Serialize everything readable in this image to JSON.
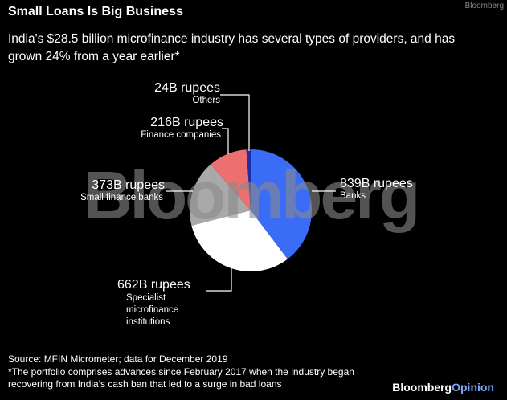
{
  "chart_data": {
    "type": "pie",
    "title": "Small Loans Is Big Business",
    "subtitle": "India's $28.5 billion microfinance industry has several types of providers, and has grown 24% from a year earlier*",
    "categories": [
      "Banks",
      "Specialist microfinance institutions",
      "Small finance banks",
      "Finance companies",
      "Others"
    ],
    "values": [
      839,
      662,
      373,
      216,
      24
    ],
    "value_labels": [
      "839B rupees",
      "662B rupees",
      "373B rupees",
      "216B rupees",
      "24B rupees"
    ],
    "colors": [
      "#3a6cf6",
      "#ffffff",
      "#a9a9a9",
      "#ee6f6f",
      "#1f2fa8"
    ],
    "source": "Source: MFIN Micrometer; data for December 2019",
    "note": "*The portfolio comprises advances since February 2017 when the industry began recovering from India's cash ban that led to a surge in bad loans",
    "watermark": "Bloomberg",
    "corner_logo": "Bloomberg",
    "brand": [
      "Bloomberg",
      "Opinion"
    ]
  }
}
